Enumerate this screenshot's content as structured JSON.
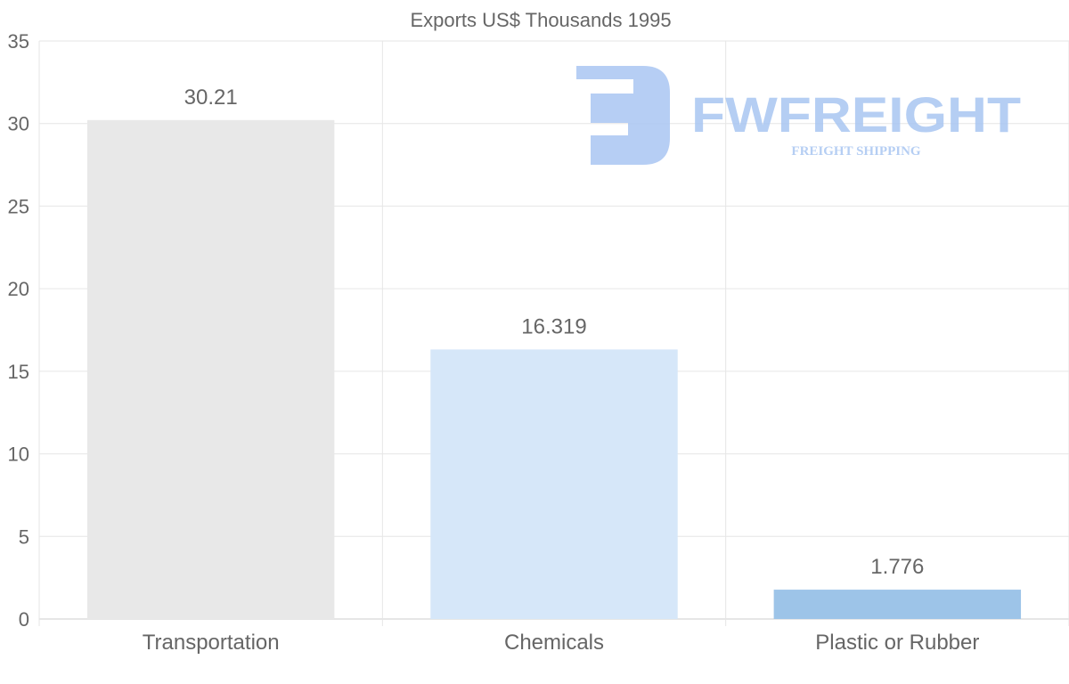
{
  "chart_data": {
    "type": "bar",
    "title": "Exports US$ Thousands 1995",
    "categories": [
      "Transportation",
      "Chemicals",
      "Plastic or Rubber"
    ],
    "values": [
      30.21,
      16.319,
      1.776
    ],
    "value_labels": [
      "30.21",
      "16.319",
      "1.776"
    ],
    "colors": [
      "#e8e8e8",
      "#d6e7f9",
      "#9dc4e8"
    ],
    "xlabel": "",
    "ylabel": "",
    "ylim": [
      0,
      35
    ],
    "yticks": [
      0,
      5,
      10,
      15,
      20,
      25,
      30,
      35
    ],
    "grid": true,
    "legend": "none"
  },
  "watermark": {
    "brand": "FWFREIGHT",
    "tagline": "FREIGHT SHIPPING",
    "color": "#a9c6f2"
  }
}
